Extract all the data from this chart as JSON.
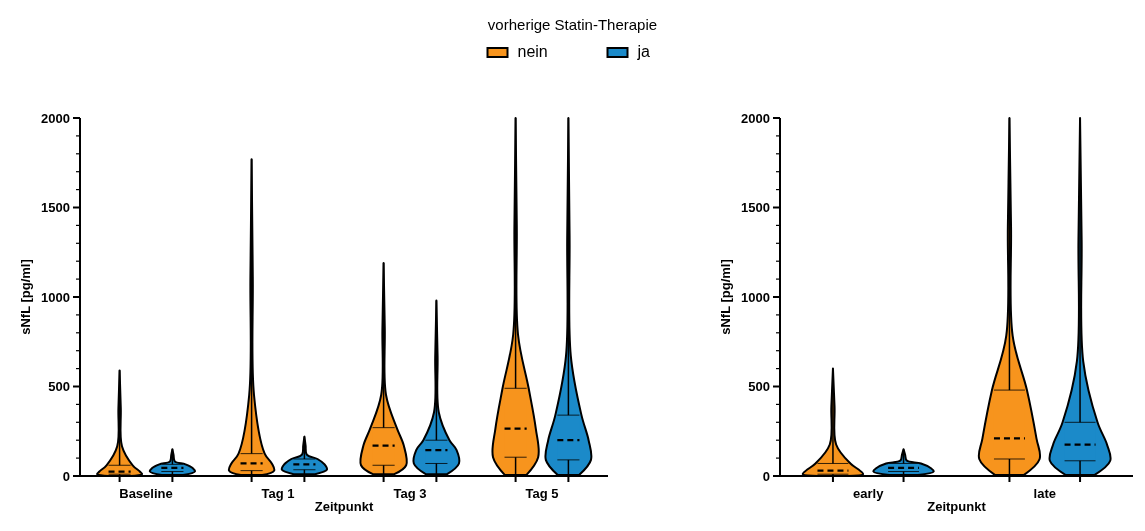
{
  "chart_data": [
    {
      "type": "box",
      "legend_title": "vorherige Statin-Therapie",
      "legend": "top",
      "xlabel": "Zeitpunkt",
      "ylabel": "sNfL [pg/ml]",
      "categories": [
        "Baseline",
        "Tag 1",
        "Tag 3",
        "Tag 5"
      ],
      "ylim": [
        0,
        2000
      ],
      "yticks": [
        0,
        {
          "value": 100,
          "label": null
        },
        {
          "value": 200,
          "label": null
        },
        {
          "value": 300,
          "label": null
        },
        {
          "value": 400,
          "label": null
        },
        500,
        {
          "value": 600,
          "label": null
        },
        {
          "value": 700,
          "label": null
        },
        {
          "value": 800,
          "label": null
        },
        {
          "value": 900,
          "label": null
        },
        1000,
        {
          "value": 1100,
          "label": null
        },
        {
          "value": 1200,
          "label": null
        },
        {
          "value": 1300,
          "label": null
        },
        {
          "value": 1400,
          "label": null
        },
        1500,
        {
          "value": 1600,
          "label": null
        },
        {
          "value": 1700,
          "label": null
        },
        {
          "value": 1800,
          "label": null
        },
        {
          "value": 1900,
          "label": null
        },
        2000
      ],
      "grid": false,
      "series": [
        {
          "name": "nein",
          "color": "#f7941d",
          "boxes": [
            {
              "low": 0,
              "q1": 10,
              "median": 25,
              "q3": 60,
              "high": 590
            },
            {
              "low": 5,
              "q1": 30,
              "median": 70,
              "q3": 125,
              "high": 1770
            },
            {
              "low": 10,
              "q1": 60,
              "median": 170,
              "q3": 270,
              "high": 1190
            },
            {
              "low": 5,
              "q1": 105,
              "median": 265,
              "q3": 490,
              "high": 2000
            }
          ]
        },
        {
          "name": "ja",
          "color": "#1b8ac9",
          "boxes": [
            {
              "low": 5,
              "q1": 25,
              "median": 45,
              "q3": 65,
              "high": 150
            },
            {
              "low": 10,
              "q1": 35,
              "median": 65,
              "q3": 95,
              "high": 220
            },
            {
              "low": 10,
              "q1": 70,
              "median": 145,
              "q3": 200,
              "high": 980
            },
            {
              "low": 5,
              "q1": 90,
              "median": 200,
              "q3": 340,
              "high": 2000
            }
          ]
        }
      ]
    },
    {
      "type": "box",
      "xlabel": "Zeitpunkt",
      "ylabel": "sNfL [pg/ml]",
      "categories": [
        "early",
        "late"
      ],
      "ylim": [
        0,
        2000
      ],
      "yticks": [
        0,
        {
          "value": 100,
          "label": null
        },
        {
          "value": 200,
          "label": null
        },
        {
          "value": 300,
          "label": null
        },
        {
          "value": 400,
          "label": null
        },
        500,
        {
          "value": 600,
          "label": null
        },
        {
          "value": 700,
          "label": null
        },
        {
          "value": 800,
          "label": null
        },
        {
          "value": 900,
          "label": null
        },
        1000,
        {
          "value": 1100,
          "label": null
        },
        {
          "value": 1200,
          "label": null
        },
        {
          "value": 1300,
          "label": null
        },
        {
          "value": 1400,
          "label": null
        },
        1500,
        {
          "value": 1600,
          "label": null
        },
        {
          "value": 1700,
          "label": null
        },
        {
          "value": 1800,
          "label": null
        },
        {
          "value": 1900,
          "label": null
        },
        2000
      ],
      "grid": false,
      "series": [
        {
          "color": "#f7941d",
          "boxes": [
            {
              "low": 0,
              "q1": 10,
              "median": 30,
              "q3": 70,
              "high": 600
            },
            {
              "low": 5,
              "q1": 95,
              "median": 210,
              "q3": 480,
              "high": 2000
            }
          ]
        },
        {
          "color": "#1b8ac9",
          "boxes": [
            {
              "low": 5,
              "q1": 25,
              "median": 45,
              "q3": 70,
              "high": 150
            },
            {
              "low": 5,
              "q1": 85,
              "median": 175,
              "q3": 300,
              "high": 2000
            }
          ]
        }
      ]
    }
  ]
}
